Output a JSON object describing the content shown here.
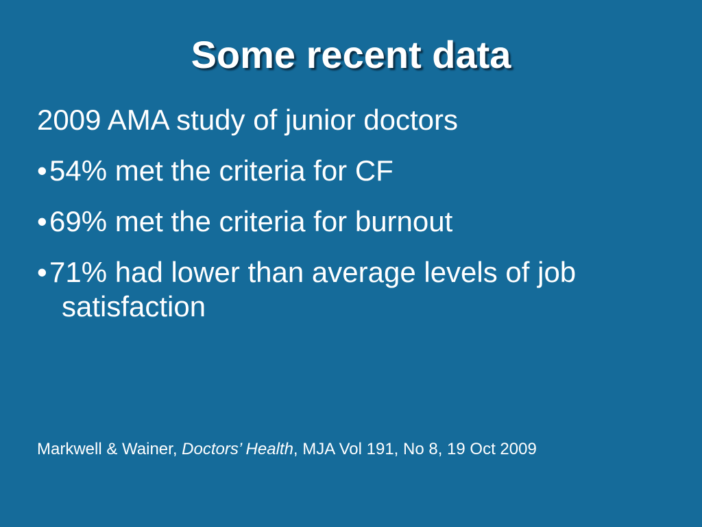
{
  "slide": {
    "title": "Some recent data",
    "intro": "2009 AMA study of junior doctors",
    "bullet_mark": "•",
    "bullets": [
      "54% met the criteria for CF",
      "69% met the criteria for burnout",
      "71% had lower than average levels of job satisfaction"
    ],
    "citation": {
      "authors": "Markwell & Wainer, ",
      "journal": "Doctors’ Health",
      "rest": ", MJA Vol 191, No 8, 19 Oct 2009"
    }
  },
  "colors": {
    "background": "#156b9a",
    "text": "#ffffff"
  }
}
